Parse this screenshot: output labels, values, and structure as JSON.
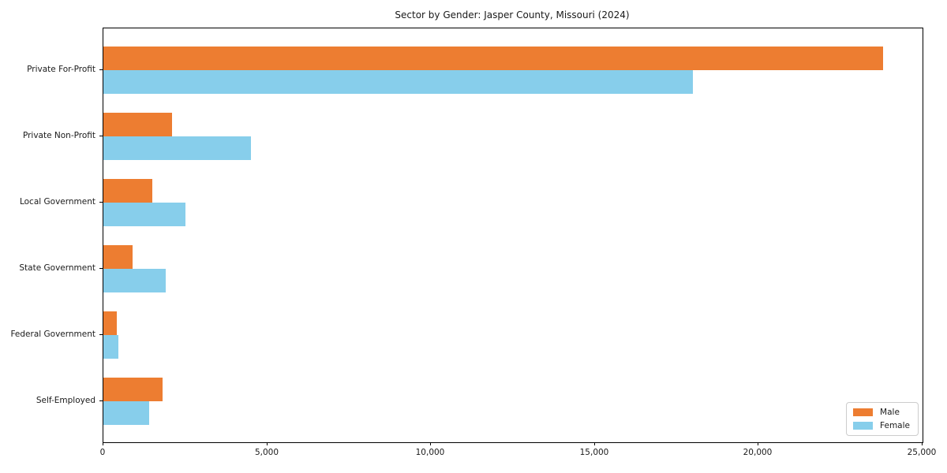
{
  "page": {
    "background": "#ffffff"
  },
  "chart_data": {
    "type": "bar",
    "orientation": "horizontal",
    "title": "Sector by Gender: Jasper County, Missouri (2024)",
    "categories": [
      "Private For-Profit",
      "Private Non-Profit",
      "Local Government",
      "State Government",
      "Federal Government",
      "Self-Employed"
    ],
    "series": [
      {
        "name": "Male",
        "color": "#ED7D31",
        "values": [
          23800,
          2100,
          1500,
          900,
          400,
          1800
        ]
      },
      {
        "name": "Female",
        "color": "#87CEEB",
        "values": [
          18000,
          4500,
          2500,
          1900,
          450,
          1400
        ]
      }
    ],
    "xlabel": "",
    "ylabel": "",
    "xlim": [
      0,
      25000
    ],
    "x_ticks": [
      0,
      5000,
      10000,
      15000,
      20000,
      25000
    ],
    "x_tick_labels": [
      "0",
      "5,000",
      "10,000",
      "15,000",
      "20,000",
      "25,000"
    ],
    "grid": false,
    "legend": {
      "position": "lower right",
      "entries": [
        "Male",
        "Female"
      ]
    }
  }
}
